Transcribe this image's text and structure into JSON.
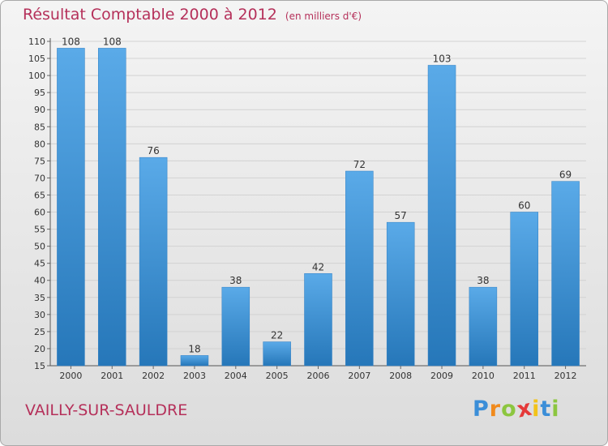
{
  "chart_data": {
    "type": "bar",
    "title": "Résultat Comptable 2000 à 2012",
    "subtitle": "(en milliers d'€)",
    "categories": [
      "2000",
      "2001",
      "2002",
      "2003",
      "2004",
      "2005",
      "2006",
      "2007",
      "2008",
      "2009",
      "2010",
      "2011",
      "2012"
    ],
    "values": [
      108,
      108,
      76,
      18,
      38,
      22,
      42,
      72,
      57,
      103,
      38,
      60,
      69
    ],
    "ylim": [
      15,
      110
    ],
    "yticks": [
      15,
      20,
      25,
      30,
      35,
      40,
      45,
      50,
      55,
      60,
      65,
      70,
      75,
      80,
      85,
      90,
      95,
      100,
      105,
      110
    ],
    "xlabel": "",
    "ylabel": "",
    "grid": true,
    "bar_color": "#3d8fd6"
  },
  "location": "VAILLY-SUR-SAULDRE",
  "logo": {
    "letters": [
      "P",
      "r",
      "o",
      "x",
      "i",
      "t",
      "i"
    ],
    "colors": [
      "#3b8ed8",
      "#f08a1c",
      "#8cc63f",
      "#e53939",
      "#f2c319",
      "#3b8ed8",
      "#8cc63f"
    ]
  },
  "colors": {
    "title": "#b5305a",
    "bar_top": "#5aaae8",
    "bar_bottom": "#2677b9"
  }
}
